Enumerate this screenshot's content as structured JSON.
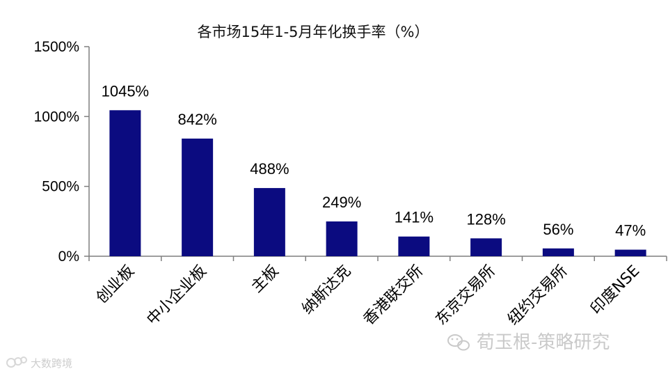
{
  "chart_data": {
    "type": "bar",
    "title": "各市场15年1-5月年化换手率（%）",
    "categories": [
      "创业板",
      "中小企业板",
      "主板",
      "纳斯达克",
      "香港联交所",
      "东京交易所",
      "纽约交易所",
      "印度NSE"
    ],
    "values": [
      1045,
      842,
      488,
      249,
      141,
      128,
      56,
      47
    ],
    "data_labels": [
      "1045%",
      "842%",
      "488%",
      "249%",
      "141%",
      "128%",
      "56%",
      "47%"
    ],
    "ylim": [
      0,
      1500
    ],
    "yticks": [
      0,
      500,
      1000,
      1500
    ],
    "ytick_labels": [
      "0%",
      "500%",
      "1000%",
      "1500%"
    ],
    "xlabel": "",
    "ylabel": "",
    "grid": false,
    "bar_color": "#0b0b80"
  },
  "watermarks": {
    "wechat_account": "荀玉根-策略研究",
    "bottom_left": "大数跨境"
  }
}
